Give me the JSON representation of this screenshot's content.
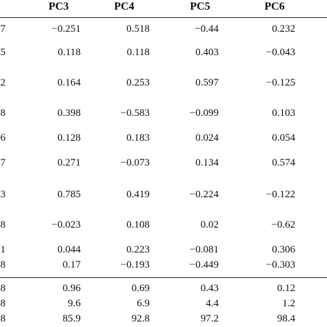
{
  "table": {
    "header": [
      "PC3",
      "PC4",
      "PC5",
      "PC6"
    ],
    "rows": [
      [
        "7",
        "−0.251",
        "0.518",
        "−0.44",
        "0.232"
      ],
      [
        "5",
        "0.118",
        "0.118",
        "0.403",
        "−0.043"
      ],
      [
        "2",
        "0.164",
        "0.253",
        "0.597",
        "−0.125"
      ],
      [
        "8",
        "0.398",
        "−0.583",
        "−0.099",
        "0.103"
      ],
      [
        "6",
        "0.128",
        "0.183",
        "0.024",
        "0.054"
      ],
      [
        "7",
        "0.271",
        "−0.073",
        "0.134",
        "0.574"
      ],
      [
        "3",
        "0.785",
        "0.419",
        "−0.224",
        "−0.122"
      ],
      [
        "8",
        "−0.023",
        "0.108",
        "0.02",
        "−0.62"
      ],
      [
        "1",
        "0.044",
        "0.223",
        "−0.081",
        "0.306"
      ],
      [
        "8",
        "0.17",
        "−0.193",
        "−0.449",
        "−0.303"
      ]
    ],
    "summary_rows": [
      [
        "8",
        "0.96",
        "0.69",
        "0.43",
        "0.12"
      ],
      [
        "8",
        "9.6",
        "6.9",
        "4.4",
        "1.2"
      ],
      [
        "8",
        "85.9",
        "92.8",
        "97.2",
        "98.4"
      ]
    ]
  }
}
